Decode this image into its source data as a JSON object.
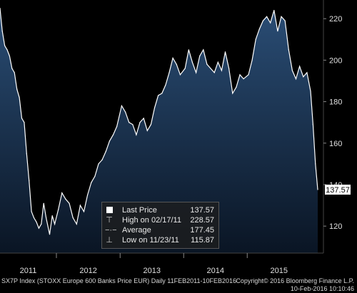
{
  "chart_data": {
    "type": "area",
    "x": [
      "2011-02-11",
      "2011-02-24",
      "2011-03-10",
      "2011-03-24",
      "2011-04-07",
      "2011-04-21",
      "2011-05-05",
      "2011-05-19",
      "2011-06-02",
      "2011-06-16",
      "2011-06-30",
      "2011-07-14",
      "2011-07-28",
      "2011-08-11",
      "2011-08-25",
      "2011-09-08",
      "2011-09-22",
      "2011-10-06",
      "2011-10-20",
      "2011-11-03",
      "2011-11-23",
      "2011-12-08",
      "2011-12-22",
      "2012-01-12",
      "2012-02-02",
      "2012-02-23",
      "2012-03-15",
      "2012-04-05",
      "2012-04-26",
      "2012-05-17",
      "2012-06-07",
      "2012-06-28",
      "2012-07-19",
      "2012-08-09",
      "2012-08-30",
      "2012-09-20",
      "2012-10-11",
      "2012-11-01",
      "2012-11-22",
      "2012-12-13",
      "2013-01-10",
      "2013-01-31",
      "2013-02-21",
      "2013-03-14",
      "2013-04-04",
      "2013-04-25",
      "2013-05-16",
      "2013-06-06",
      "2013-06-27",
      "2013-07-18",
      "2013-08-08",
      "2013-08-29",
      "2013-09-19",
      "2013-10-10",
      "2013-10-31",
      "2013-11-21",
      "2013-12-12",
      "2014-01-09",
      "2014-01-30",
      "2014-02-20",
      "2014-03-13",
      "2014-04-03",
      "2014-04-24",
      "2014-05-15",
      "2014-06-05",
      "2014-06-26",
      "2014-07-17",
      "2014-08-07",
      "2014-08-28",
      "2014-09-18",
      "2014-10-09",
      "2014-10-30",
      "2014-11-20",
      "2014-12-11",
      "2015-01-08",
      "2015-01-29",
      "2015-02-19",
      "2015-03-12",
      "2015-04-02",
      "2015-04-23",
      "2015-05-14",
      "2015-06-04",
      "2015-06-25",
      "2015-07-16",
      "2015-08-06",
      "2015-08-27",
      "2015-09-17",
      "2015-10-08",
      "2015-10-29",
      "2015-11-19",
      "2015-12-10",
      "2015-12-31",
      "2016-01-14",
      "2016-01-28",
      "2016-02-10"
    ],
    "values": [
      225,
      214,
      207,
      205,
      202,
      196,
      194,
      186,
      182,
      172,
      170,
      155,
      142,
      127,
      124,
      122,
      119,
      121,
      131,
      124,
      116,
      125,
      121,
      128,
      136,
      133,
      131,
      124,
      121,
      130,
      127,
      135,
      141,
      144,
      150,
      152,
      156,
      161,
      164,
      168,
      178,
      175,
      170,
      169,
      164,
      170,
      172,
      166,
      169,
      177,
      183,
      184,
      188,
      194,
      201,
      198,
      193,
      196,
      205,
      199,
      194,
      202,
      205,
      198,
      196,
      194,
      199,
      195,
      204,
      196,
      184,
      187,
      193,
      191,
      193,
      200,
      210,
      215,
      219,
      221,
      218,
      224,
      214,
      221,
      219,
      205,
      195,
      191,
      197,
      192,
      194,
      185,
      169,
      150,
      137.57
    ],
    "ylim": [
      107,
      229
    ],
    "yticks": [
      120,
      140,
      160,
      180,
      200,
      220
    ],
    "xticks": [
      "2011",
      "2012",
      "2013",
      "2014",
      "2015"
    ],
    "last_value_tag": "137.57",
    "grid": false,
    "colors": {
      "area_top": "#2a4d75",
      "area_bottom": "#0a1524",
      "line": "#ffffff",
      "background": "#000000"
    }
  },
  "legend": {
    "last_price_label": "Last Price",
    "last_price_value": "137.57",
    "high_label": "High on 02/17/11",
    "high_value": "228.57",
    "average_label": "Average",
    "average_value": "177.45",
    "low_label": "Low on 11/23/11",
    "low_value": "115.87"
  },
  "footer": {
    "description": "SX7P Index (STOXX Europe 600 Banks Price EUR)  Daily 11FEB2011-10FEB2016",
    "copyright": "Copyright© 2016 Bloomberg Finance L.P.",
    "timestamp": "10-Feb-2016 10:10:46"
  }
}
